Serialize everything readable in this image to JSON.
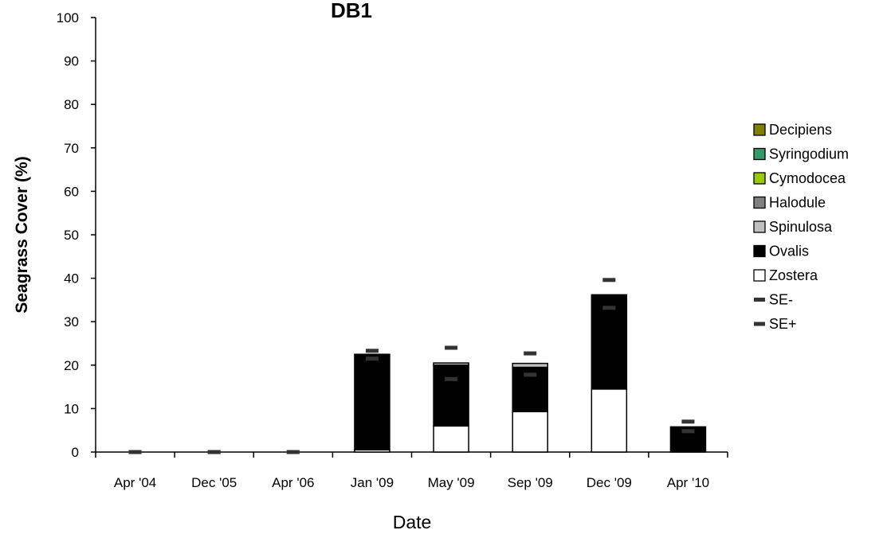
{
  "chart_data": {
    "type": "bar",
    "stacked": true,
    "title": "DB1",
    "xlabel": "Date",
    "ylabel": "Seagrass Cover (%)",
    "ylim": [
      0,
      100
    ],
    "yticks": [
      0,
      10,
      20,
      30,
      40,
      50,
      60,
      70,
      80,
      90,
      100
    ],
    "grid": false,
    "legend_position": "right",
    "categories": [
      "Apr '04",
      "Dec '05",
      "Apr '06",
      "Jan '09",
      "May '09",
      "Sep '09",
      "Dec '09",
      "Apr '10"
    ],
    "series": [
      {
        "name": "Zostera",
        "color": "#ffffff",
        "values": [
          0,
          0,
          0,
          0.5,
          6.0,
          9.3,
          14.5,
          0
        ]
      },
      {
        "name": "Ovalis",
        "color": "#000000",
        "values": [
          0,
          0,
          0,
          22.0,
          14.0,
          10.2,
          21.7,
          5.8
        ]
      },
      {
        "name": "Spinulosa",
        "color": "#c0c0c0",
        "values": [
          0,
          0,
          0,
          0,
          0.5,
          0.9,
          0,
          0
        ]
      },
      {
        "name": "Halodule",
        "color": "#808080",
        "values": [
          0,
          0,
          0,
          0,
          0,
          0,
          0,
          0
        ]
      },
      {
        "name": "Cymodocea",
        "color": "#99cc00",
        "values": [
          0,
          0,
          0,
          0,
          0,
          0,
          0,
          0
        ]
      },
      {
        "name": "Syringodium",
        "color": "#339966",
        "values": [
          0,
          0,
          0,
          0,
          0,
          0,
          0,
          0
        ]
      },
      {
        "name": "Decipiens",
        "color": "#808000",
        "values": [
          0,
          0,
          0,
          0,
          0,
          0,
          0,
          0
        ]
      }
    ],
    "error_markers": [
      {
        "name": "SE-",
        "color": "#333333",
        "values": [
          0,
          0,
          0,
          21.5,
          16.8,
          17.8,
          33.2,
          4.8
        ]
      },
      {
        "name": "SE+",
        "color": "#333333",
        "values": [
          0,
          0,
          0,
          23.3,
          24.0,
          22.7,
          39.6,
          7.0
        ]
      }
    ],
    "legend_order": [
      "Decipiens",
      "Syringodium",
      "Cymodocea",
      "Halodule",
      "Spinulosa",
      "Ovalis",
      "Zostera",
      "SE-",
      "SE+"
    ]
  }
}
